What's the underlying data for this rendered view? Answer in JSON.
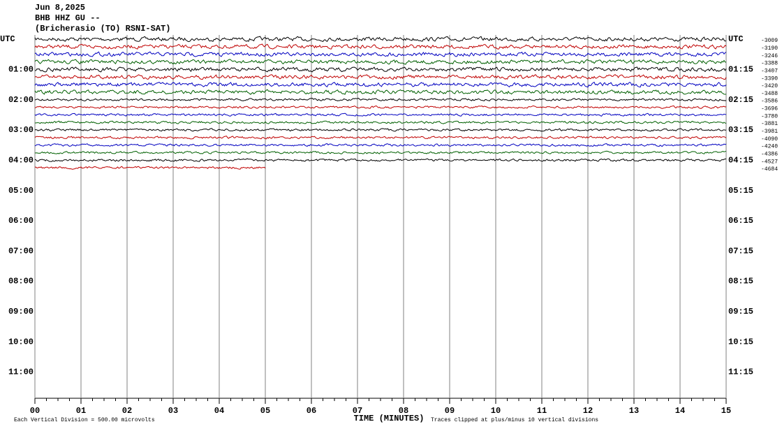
{
  "chart_data": {
    "type": "helicorder",
    "title_lines": [
      "Jun 8,2025",
      "BHB HHZ GU --",
      "(Bricherasio (TO) RSNI-SAT)"
    ],
    "left_labels": [
      "UTC",
      "01:00",
      "02:00",
      "03:00",
      "04:00",
      "05:00",
      "06:00",
      "07:00",
      "08:00",
      "09:00",
      "10:00",
      "11:00"
    ],
    "right_labels": [
      "UTC",
      "01:15",
      "02:15",
      "03:15",
      "04:15",
      "05:15",
      "06:15",
      "07:15",
      "08:15",
      "09:15",
      "10:15",
      "11:15"
    ],
    "traces": [
      {
        "color": "#000000",
        "label": "-3009"
      },
      {
        "color": "#c00000",
        "label": "-3190"
      },
      {
        "color": "#0000c0",
        "label": "-3246"
      },
      {
        "color": "#006000",
        "label": "-3388"
      },
      {
        "color": "#000000",
        "label": "-3407"
      },
      {
        "color": "#c00000",
        "label": "-3390"
      },
      {
        "color": "#0000c0",
        "label": "-3420"
      },
      {
        "color": "#006000",
        "label": "-3488"
      },
      {
        "color": "#000000",
        "label": "-3586"
      },
      {
        "color": "#c00000",
        "label": "-3696"
      },
      {
        "color": "#0000c0",
        "label": "-3780"
      },
      {
        "color": "#006000",
        "label": "-3881"
      },
      {
        "color": "#000000",
        "label": "-3981"
      },
      {
        "color": "#c00000",
        "label": "-4090"
      },
      {
        "color": "#0000c0",
        "label": "-4240"
      },
      {
        "color": "#006000",
        "label": "-4386"
      },
      {
        "color": "#000000",
        "label": "-4527"
      },
      {
        "color": "#c00000",
        "label": "-4684"
      }
    ],
    "last_trace_end": 5,
    "xlim": [
      0,
      15
    ],
    "xticks": [
      {
        "value": 0,
        "label": "00"
      },
      {
        "value": 1,
        "label": "01"
      },
      {
        "value": 2,
        "label": "02"
      },
      {
        "value": 3,
        "label": "03"
      },
      {
        "value": 4,
        "label": "04"
      },
      {
        "value": 5,
        "label": "05"
      },
      {
        "value": 6,
        "label": "06"
      },
      {
        "value": 7,
        "label": "07"
      },
      {
        "value": 8,
        "label": "08"
      },
      {
        "value": 9,
        "label": "09"
      },
      {
        "value": 10,
        "label": "10"
      },
      {
        "value": 11,
        "label": "11"
      },
      {
        "value": 12,
        "label": "12"
      },
      {
        "value": 13,
        "label": "13"
      },
      {
        "value": 14,
        "label": "14"
      },
      {
        "value": 15,
        "label": "15"
      }
    ],
    "xlabel": "TIME (MINUTES)",
    "scale_note": "Each Vertical Division =  500.00 microvolts",
    "clip_note": "Traces clipped at plus/minus 10 vertical divisions"
  }
}
